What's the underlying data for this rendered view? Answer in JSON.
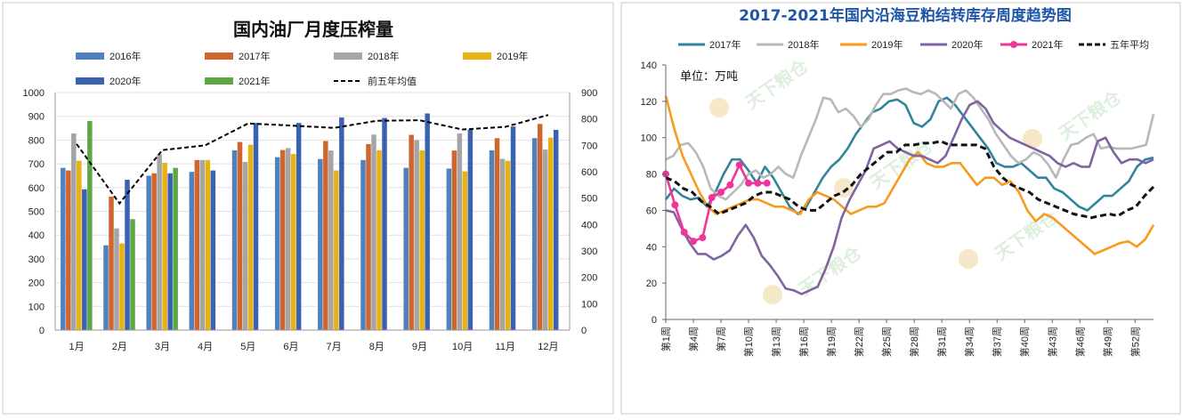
{
  "chart_data": [
    {
      "type": "bar",
      "title": "国内油厂月度压榨量",
      "categories": [
        "1月",
        "2月",
        "3月",
        "4月",
        "5月",
        "6月",
        "7月",
        "8月",
        "9月",
        "10月",
        "11月",
        "12月"
      ],
      "ylim": [
        0,
        1000
      ],
      "yticks": [
        0,
        100,
        200,
        300,
        400,
        500,
        600,
        700,
        800,
        900,
        1000
      ],
      "y2lim": [
        0,
        900
      ],
      "y2ticks": [
        0,
        100,
        200,
        300,
        400,
        500,
        600,
        700,
        800,
        900
      ],
      "series": [
        {
          "name": "2016年",
          "color": "#4f81bd",
          "values": [
            683,
            357,
            650,
            666,
            757,
            728,
            720,
            716,
            683,
            680,
            757,
            808
          ]
        },
        {
          "name": "2017年",
          "color": "#d0662f",
          "values": [
            672,
            562,
            660,
            716,
            792,
            758,
            796,
            783,
            822,
            756,
            808,
            868
          ]
        },
        {
          "name": "2018年",
          "color": "#a5a5a5",
          "values": [
            828,
            428,
            740,
            716,
            708,
            766,
            756,
            823,
            800,
            828,
            721,
            760
          ]
        },
        {
          "name": "2019年",
          "color": "#e6b214",
          "values": [
            713,
            365,
            704,
            716,
            780,
            741,
            672,
            757,
            757,
            668,
            713,
            810
          ]
        },
        {
          "name": "2020年",
          "color": "#3a62b0",
          "values": [
            593,
            633,
            660,
            672,
            872,
            872,
            895,
            893,
            912,
            844,
            857,
            843
          ]
        },
        {
          "name": "2021年",
          "color": "#5da747",
          "values": [
            880,
            467,
            683,
            null,
            null,
            null,
            null,
            null,
            null,
            null,
            null,
            null
          ]
        }
      ],
      "avg_line": {
        "name": "前五年均值",
        "axis": "secondary",
        "values": [
          705,
          480,
          682,
          700,
          783,
          775,
          766,
          793,
          795,
          760,
          770,
          815
        ]
      }
    },
    {
      "type": "line",
      "title": "2017-2021年国内沿海豆粕结转库存周度趋势图",
      "unit_label": "单位：万吨",
      "ylim": [
        0,
        140
      ],
      "yticks": [
        0,
        20,
        40,
        60,
        80,
        100,
        120,
        140
      ],
      "xticks": [
        "第1周",
        "第4周",
        "第7周",
        "第10周",
        "第13周",
        "第16周",
        "第19周",
        "第22周",
        "第25周",
        "第28周",
        "第31周",
        "第34周",
        "第37周",
        "第40周",
        "第43周",
        "第46周",
        "第49周",
        "第52周"
      ],
      "series": [
        {
          "name": "2017年",
          "color": "#31849b",
          "values": [
            66,
            72,
            68,
            66,
            67,
            62,
            70,
            80,
            88,
            88,
            82,
            75,
            84,
            78,
            70,
            62,
            58,
            62,
            70,
            78,
            84,
            88,
            94,
            102,
            108,
            114,
            116,
            120,
            121,
            118,
            108,
            106,
            110,
            120,
            122,
            118,
            112,
            106,
            100,
            94,
            86,
            84,
            84,
            86,
            82,
            78,
            78,
            72,
            70,
            66,
            62,
            60,
            64,
            68,
            68,
            72,
            76,
            84,
            88,
            89
          ]
        },
        {
          "name": "2018年",
          "color": "#b8b8b8",
          "values": [
            88,
            90,
            96,
            97,
            92,
            84,
            72,
            68,
            66,
            70,
            74,
            80,
            82,
            78,
            80,
            84,
            80,
            78,
            90,
            100,
            110,
            122,
            121,
            114,
            116,
            112,
            106,
            110,
            118,
            124,
            124,
            126,
            127,
            125,
            124,
            126,
            124,
            120,
            116,
            124,
            126,
            122,
            116,
            110,
            102,
            96,
            90,
            86,
            88,
            92,
            90,
            85,
            78,
            88,
            96,
            97,
            100,
            102,
            94,
            95,
            94,
            94,
            94,
            95,
            96,
            113
          ]
        },
        {
          "name": "2019年",
          "color": "#f79a1e",
          "values": [
            123,
            105,
            90,
            80,
            70,
            62,
            58,
            60,
            62,
            64,
            66,
            66,
            64,
            62,
            62,
            60,
            58,
            66,
            70,
            68,
            66,
            62,
            58,
            60,
            62,
            62,
            64,
            72,
            80,
            88,
            92,
            86,
            84,
            84,
            86,
            86,
            80,
            74,
            78,
            78,
            74,
            76,
            70,
            60,
            54,
            58,
            56,
            52,
            48,
            44,
            40,
            36,
            38,
            40,
            42,
            43,
            40,
            44,
            52
          ]
        },
        {
          "name": "2020年",
          "color": "#8064a2",
          "values": [
            60,
            59,
            50,
            42,
            36,
            36,
            33,
            35,
            38,
            46,
            52,
            45,
            35,
            30,
            24,
            17,
            16,
            14,
            16,
            18,
            28,
            40,
            56,
            66,
            74,
            82,
            94,
            96,
            98,
            94,
            92,
            90,
            90,
            88,
            86,
            90,
            100,
            110,
            118,
            120,
            116,
            108,
            104,
            100,
            98,
            96,
            94,
            92,
            90,
            86,
            84,
            86,
            84,
            84,
            98,
            100,
            92,
            86,
            88,
            88,
            86,
            88
          ]
        },
        {
          "name": "2021年",
          "color": "#f0359a",
          "values": [
            80,
            63,
            48,
            43,
            45,
            67,
            70,
            74,
            85,
            75,
            75,
            75
          ]
        },
        {
          "name": "五年平均",
          "color": "#111111",
          "dashed": true,
          "values": [
            78,
            76,
            72,
            70,
            65,
            62,
            58,
            60,
            62,
            64,
            68,
            70,
            70,
            68,
            66,
            62,
            60,
            60,
            64,
            68,
            70,
            74,
            80,
            84,
            88,
            92,
            92,
            96,
            96,
            97,
            97,
            98,
            96,
            96,
            96,
            96,
            94,
            84,
            78,
            74,
            72,
            70,
            66,
            64,
            62,
            60,
            58,
            57,
            56,
            57,
            58,
            57,
            60,
            62,
            68,
            73
          ]
        }
      ]
    }
  ],
  "watermark": "天下粮仓"
}
